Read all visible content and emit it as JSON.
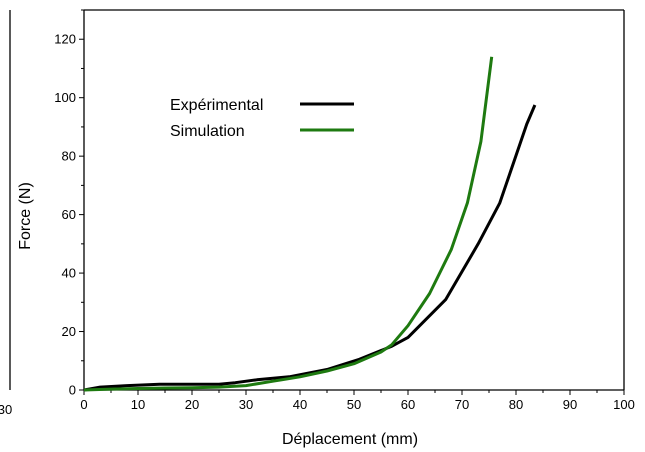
{
  "chart_data": {
    "type": "line",
    "xlabel": "Déplacement (mm)",
    "ylabel": "Force (N)",
    "xlim": [
      0,
      100
    ],
    "ylim": [
      0,
      130
    ],
    "x_ticks": [
      0,
      10,
      20,
      30,
      40,
      50,
      60,
      70,
      80,
      90,
      100
    ],
    "y_ticks": [
      0,
      20,
      40,
      60,
      80,
      100,
      120
    ],
    "left_fragment_label": "30",
    "legend_position": "upper-left",
    "grid": false,
    "series": [
      {
        "name": "Expérimental",
        "color": "#000000",
        "x": [
          0,
          3,
          8,
          14,
          19,
          25,
          28,
          32,
          38,
          45,
          51,
          57,
          60,
          67,
          73,
          77,
          82,
          83.5
        ],
        "y": [
          0,
          1,
          1.5,
          2,
          2,
          2,
          2.5,
          3.5,
          4.5,
          7,
          10.5,
          15,
          18,
          31,
          50,
          64,
          91,
          97.5
        ]
      },
      {
        "name": "Simulation",
        "color": "#1e7a10",
        "x": [
          0,
          5,
          10,
          15,
          20,
          25,
          30,
          35,
          40,
          45,
          50,
          55,
          57,
          60,
          64,
          68,
          71,
          73.5,
          75.5
        ],
        "y": [
          0,
          0.3,
          0.5,
          0.7,
          0.8,
          1,
          1.5,
          3,
          4.5,
          6.5,
          9,
          13,
          15.5,
          22,
          33,
          48,
          64,
          85,
          114
        ]
      }
    ]
  }
}
